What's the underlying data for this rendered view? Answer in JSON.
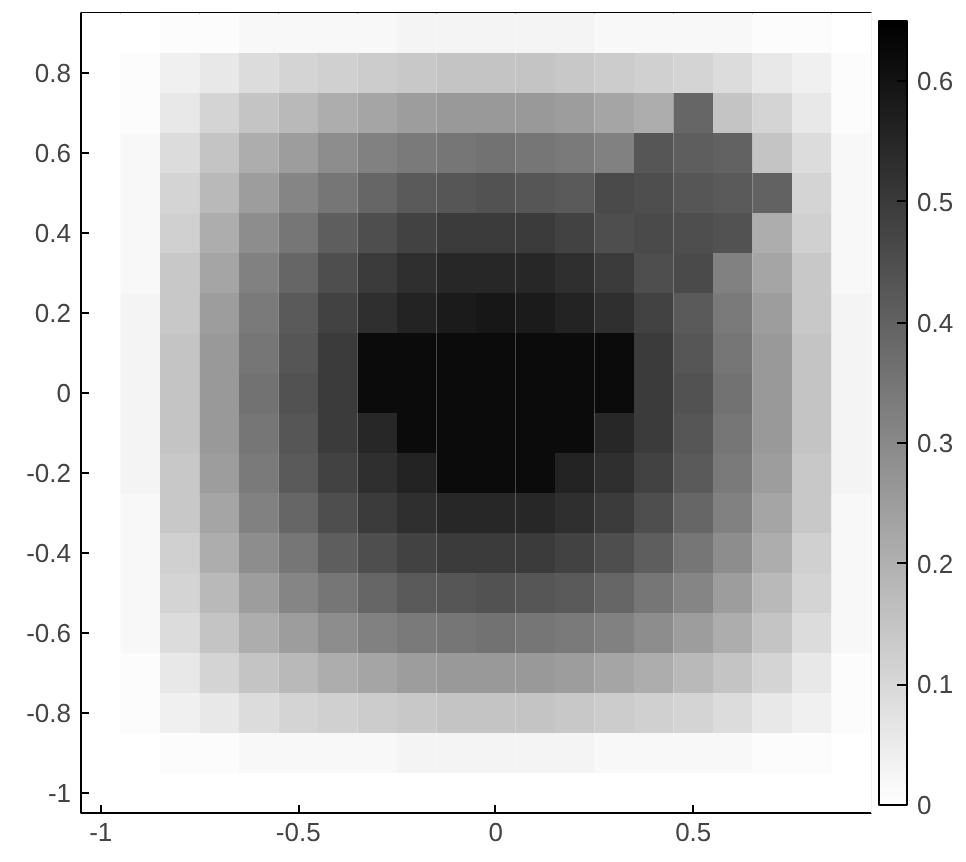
{
  "chart_data": {
    "type": "heatmap",
    "categories": [
      "-1",
      null,
      null,
      null,
      null,
      "-0.5",
      null,
      null,
      null,
      null,
      "0",
      null,
      null,
      null,
      null,
      "0.5",
      null,
      null,
      null,
      null
    ],
    "y_categories": [
      null,
      "0.8",
      null,
      "0.6",
      null,
      "0.4",
      null,
      "0.2",
      null,
      "0",
      null,
      "-0.2",
      null,
      "-0.4",
      null,
      "-0.6",
      null,
      "-0.8",
      null,
      "-1"
    ],
    "cells": [
      [
        0,
        0,
        0.01,
        0.01,
        0.02,
        0.02,
        0.02,
        0.02,
        0.03,
        0.03,
        0.03,
        0.03,
        0.03,
        0.02,
        0.02,
        0.02,
        0.02,
        0.01,
        0.01,
        0
      ],
      [
        0,
        0.01,
        0.04,
        0.06,
        0.09,
        0.11,
        0.12,
        0.13,
        0.14,
        0.15,
        0.15,
        0.15,
        0.14,
        0.13,
        0.12,
        0.11,
        0.09,
        0.06,
        0.04,
        0.01
      ],
      [
        0,
        0.01,
        0.06,
        0.11,
        0.15,
        0.18,
        0.21,
        0.23,
        0.25,
        0.26,
        0.26,
        0.26,
        0.25,
        0.23,
        0.21,
        0.39,
        0.15,
        0.11,
        0.06,
        0.01
      ],
      [
        0,
        0.02,
        0.09,
        0.15,
        0.21,
        0.25,
        0.29,
        0.32,
        0.34,
        0.35,
        0.36,
        0.35,
        0.34,
        0.32,
        0.43,
        0.41,
        0.4,
        0.15,
        0.09,
        0.02
      ],
      [
        0,
        0.02,
        0.11,
        0.18,
        0.25,
        0.31,
        0.35,
        0.39,
        0.42,
        0.43,
        0.44,
        0.43,
        0.42,
        0.46,
        0.45,
        0.43,
        0.42,
        0.4,
        0.11,
        0.02
      ],
      [
        0,
        0.02,
        0.12,
        0.21,
        0.29,
        0.35,
        0.41,
        0.45,
        0.48,
        0.5,
        0.5,
        0.5,
        0.48,
        0.45,
        0.46,
        0.45,
        0.44,
        0.21,
        0.12,
        0.02
      ],
      [
        0,
        0.02,
        0.14,
        0.23,
        0.32,
        0.39,
        0.45,
        0.5,
        0.53,
        0.55,
        0.55,
        0.55,
        0.53,
        0.5,
        0.45,
        0.46,
        0.32,
        0.23,
        0.14,
        0.02
      ],
      [
        0,
        0.03,
        0.14,
        0.25,
        0.34,
        0.42,
        0.48,
        0.53,
        0.56,
        0.58,
        0.59,
        0.58,
        0.56,
        0.53,
        0.48,
        0.42,
        0.34,
        0.25,
        0.14,
        0.03
      ],
      [
        0,
        0.03,
        0.15,
        0.26,
        0.35,
        0.43,
        0.5,
        0.62,
        0.62,
        0.62,
        0.62,
        0.62,
        0.62,
        0.62,
        0.5,
        0.43,
        0.35,
        0.26,
        0.15,
        0.03
      ],
      [
        0,
        0.03,
        0.15,
        0.26,
        0.36,
        0.44,
        0.5,
        0.62,
        0.62,
        0.62,
        0.62,
        0.62,
        0.62,
        0.62,
        0.5,
        0.44,
        0.36,
        0.26,
        0.15,
        0.03
      ],
      [
        0,
        0.03,
        0.15,
        0.26,
        0.35,
        0.43,
        0.5,
        0.55,
        0.62,
        0.62,
        0.62,
        0.62,
        0.62,
        0.55,
        0.5,
        0.43,
        0.35,
        0.26,
        0.15,
        0.03
      ],
      [
        0,
        0.03,
        0.14,
        0.25,
        0.34,
        0.42,
        0.48,
        0.53,
        0.56,
        0.62,
        0.62,
        0.62,
        0.56,
        0.53,
        0.48,
        0.42,
        0.34,
        0.25,
        0.14,
        0.03
      ],
      [
        0,
        0.02,
        0.14,
        0.23,
        0.32,
        0.39,
        0.45,
        0.5,
        0.53,
        0.55,
        0.55,
        0.55,
        0.53,
        0.5,
        0.45,
        0.39,
        0.32,
        0.23,
        0.14,
        0.02
      ],
      [
        0,
        0.02,
        0.12,
        0.21,
        0.29,
        0.35,
        0.41,
        0.45,
        0.48,
        0.5,
        0.5,
        0.5,
        0.48,
        0.45,
        0.41,
        0.35,
        0.29,
        0.21,
        0.12,
        0.02
      ],
      [
        0,
        0.02,
        0.11,
        0.18,
        0.25,
        0.31,
        0.35,
        0.39,
        0.42,
        0.43,
        0.44,
        0.43,
        0.42,
        0.39,
        0.35,
        0.31,
        0.25,
        0.18,
        0.11,
        0.02
      ],
      [
        0,
        0.02,
        0.09,
        0.15,
        0.21,
        0.25,
        0.29,
        0.32,
        0.34,
        0.35,
        0.36,
        0.35,
        0.34,
        0.32,
        0.29,
        0.25,
        0.21,
        0.15,
        0.09,
        0.02
      ],
      [
        0,
        0.01,
        0.06,
        0.11,
        0.15,
        0.18,
        0.21,
        0.23,
        0.25,
        0.26,
        0.26,
        0.26,
        0.25,
        0.23,
        0.21,
        0.18,
        0.15,
        0.11,
        0.06,
        0.01
      ],
      [
        0,
        0.01,
        0.04,
        0.06,
        0.09,
        0.11,
        0.12,
        0.13,
        0.14,
        0.15,
        0.15,
        0.15,
        0.14,
        0.13,
        0.12,
        0.11,
        0.09,
        0.06,
        0.04,
        0.01
      ],
      [
        0,
        0,
        0.01,
        0.01,
        0.02,
        0.02,
        0.02,
        0.02,
        0.03,
        0.03,
        0.03,
        0.03,
        0.03,
        0.02,
        0.02,
        0.02,
        0.02,
        0.01,
        0.01,
        0
      ],
      [
        0,
        0,
        0,
        0,
        0,
        0,
        0,
        0,
        0,
        0,
        0,
        0,
        0,
        0,
        0,
        0,
        0,
        0,
        0,
        0
      ]
    ],
    "clim": [
      0,
      0.65
    ],
    "cticks": [
      0,
      0.1,
      0.2,
      0.3,
      0.4,
      0.5,
      0.6
    ]
  }
}
